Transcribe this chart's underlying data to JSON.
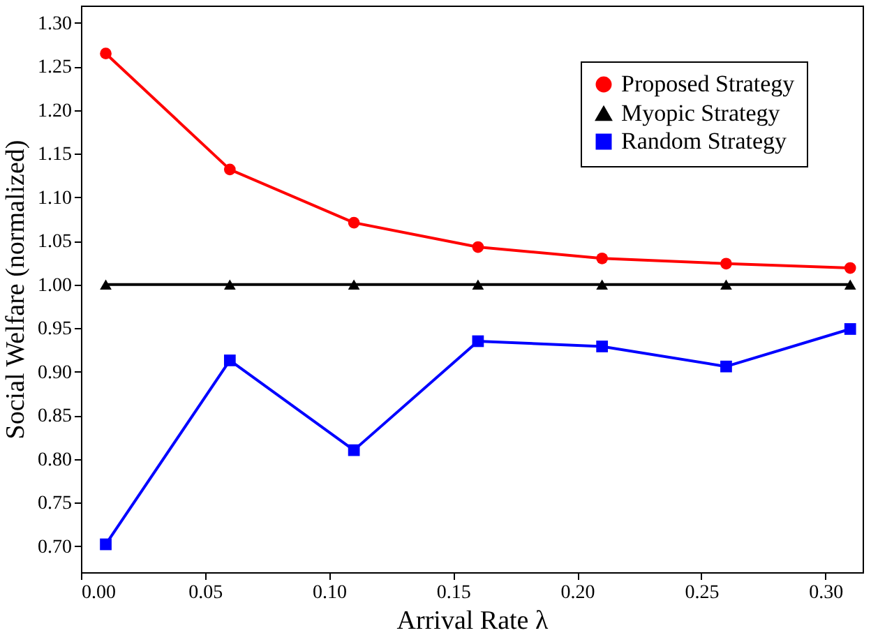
{
  "chart_data": {
    "type": "line",
    "xlabel": "Arrival Rate λ",
    "ylabel": "Social Welfare (normalized)",
    "x": [
      0.01,
      0.06,
      0.11,
      0.16,
      0.21,
      0.26,
      0.31
    ],
    "series": [
      {
        "name": "Proposed Strategy",
        "color": "#ff0000",
        "marker": "circle",
        "values": [
          1.265,
          1.132,
          1.071,
          1.043,
          1.03,
          1.024,
          1.019
        ]
      },
      {
        "name": "Myopic Strategy",
        "color": "#000000",
        "marker": "triangle",
        "values": [
          1.0,
          1.0,
          1.0,
          1.0,
          1.0,
          1.0,
          1.0
        ]
      },
      {
        "name": "Random Strategy",
        "color": "#0000ff",
        "marker": "square",
        "values": [
          0.702,
          0.913,
          0.81,
          0.935,
          0.929,
          0.906,
          0.949
        ]
      }
    ],
    "xlim": [
      0,
      0.315
    ],
    "xticks": [
      {
        "value": 0,
        "label": "0.00"
      },
      0.05,
      {
        "value": 0.1,
        "label": "0.10"
      },
      0.15,
      {
        "value": 0.2,
        "label": "0.20"
      },
      0.25,
      {
        "value": 0.3,
        "label": "0.30"
      }
    ],
    "ylim": [
      0.67,
      1.32
    ],
    "yticks": [
      {
        "value": 0.7,
        "label": "0.70"
      },
      0.75,
      {
        "value": 0.8,
        "label": "0.80"
      },
      0.85,
      {
        "value": 0.9,
        "label": "0.90"
      },
      0.95,
      {
        "value": 1.0,
        "label": "1.00"
      },
      1.05,
      {
        "value": 1.1,
        "label": "1.10"
      },
      1.15,
      {
        "value": 1.2,
        "label": "1.20"
      },
      1.25,
      {
        "value": 1.3,
        "label": "1.30"
      }
    ],
    "grid": false,
    "legend": "top right",
    "line_style": "solid"
  }
}
